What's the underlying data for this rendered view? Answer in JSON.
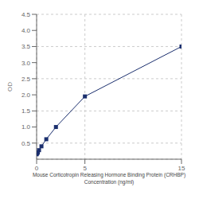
{
  "chart_data": {
    "type": "line",
    "x": [
      0,
      0.0625,
      0.125,
      0.25,
      0.5,
      1,
      2,
      5,
      15
    ],
    "values": [
      0.152,
      0.178,
      0.21,
      0.28,
      0.4,
      0.62,
      1.0,
      1.95,
      3.5
    ],
    "xlabel": "Mouse Corticotropin Releasing Hormone Binding Protein (CRHBP)\nConcentration (ng/ml)",
    "ylabel": "OD",
    "xlim": [
      0,
      15
    ],
    "ylim": [
      0,
      4.5
    ],
    "xticks": [
      0,
      5,
      15
    ],
    "yticks": [
      0.5,
      {
        "value": 1.0,
        "label": "1.0"
      },
      1.5,
      {
        "value": 2.0,
        "label": "2.0"
      },
      2.5,
      {
        "value": 3.0,
        "label": "3.0"
      },
      3.5,
      {
        "value": 4.0,
        "label": "4.0"
      },
      4.5
    ],
    "color": "#1b2f6e",
    "marker": "square",
    "grid": true
  }
}
